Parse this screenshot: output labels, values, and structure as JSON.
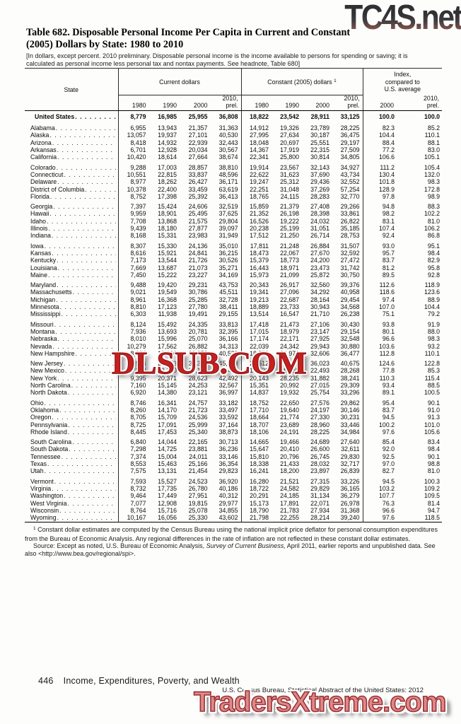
{
  "watermarks": {
    "top": "TC4S.net",
    "middle": "DLSUB.COM",
    "bottom": "TradersXtreme.com"
  },
  "colors": {
    "watermark_red": "#c5201f",
    "watermark_salmon": "#dd8a85",
    "watermark_charcoal": "#313133",
    "text": "#111111"
  },
  "title": {
    "line1": "Table 682. Disposable Personal Income Per Capita in Current and Constant",
    "line2": "(2005) Dollars by State: 1980 to 2010"
  },
  "headnote": "[In dollars, except percent. 2010 preliminary. Disposable personal income is the income available to persons for spending or saving; it is calculated as personal income less personal tax and nontax payments. See headnote, Table 680]",
  "table": {
    "col_state": "State",
    "group_current": "Current dollars",
    "group_constant": "Constant (2005) dollars",
    "footnote_marker": "1",
    "group_index": "Index, compared to U.S. average",
    "year_headers": [
      "1980",
      "1990",
      "2000",
      "2010, prel."
    ],
    "index_year_headers": [
      "2000",
      "2010, prel."
    ],
    "us_row": {
      "label": "United States",
      "values": [
        "8,779",
        "16,985",
        "25,955",
        "36,808",
        "18,822",
        "23,542",
        "28,911",
        "33,125",
        "100.0",
        "100.0"
      ]
    },
    "groups": [
      [
        {
          "label": "Alabama",
          "values": [
            "6,955",
            "13,943",
            "21,357",
            "31,363",
            "14,912",
            "19,326",
            "23,789",
            "28,225",
            "82.3",
            "85.2"
          ]
        },
        {
          "label": "Alaska",
          "values": [
            "13,057",
            "19,937",
            "27,101",
            "40,530",
            "27,995",
            "27,634",
            "30,187",
            "36,475",
            "104.4",
            "110.1"
          ]
        },
        {
          "label": "Arizona",
          "values": [
            "8,418",
            "14,932",
            "22,939",
            "32,443",
            "18,048",
            "20,697",
            "25,551",
            "29,197",
            "88.4",
            "88.1"
          ]
        },
        {
          "label": "Arkansas",
          "values": [
            "6,701",
            "12,928",
            "20,034",
            "30,567",
            "14,367",
            "17,919",
            "22,315",
            "27,509",
            "77.2",
            "83.0"
          ]
        },
        {
          "label": "California",
          "values": [
            "10,420",
            "18,614",
            "27,664",
            "38,674",
            "22,341",
            "25,800",
            "30,814",
            "34,805",
            "106.6",
            "105.1"
          ]
        }
      ],
      [
        {
          "label": "Colorado",
          "values": [
            "9,288",
            "17,003",
            "28,857",
            "38,810",
            "19,914",
            "23,567",
            "32,143",
            "34,927",
            "111.2",
            "105.4"
          ]
        },
        {
          "label": "Connecticut",
          "values": [
            "10,551",
            "22,815",
            "33,837",
            "48,596",
            "22,622",
            "31,623",
            "37,690",
            "43,734",
            "130.4",
            "132.0"
          ]
        },
        {
          "label": "Delaware",
          "values": [
            "8,977",
            "18,262",
            "26,427",
            "36,171",
            "19,247",
            "25,312",
            "29,436",
            "32,552",
            "101.8",
            "98.3"
          ]
        },
        {
          "label": "District of Columbia",
          "values": [
            "10,378",
            "22,400",
            "33,459",
            "63,619",
            "22,251",
            "31,048",
            "37,269",
            "57,254",
            "128.9",
            "172.8"
          ]
        },
        {
          "label": "Florida",
          "values": [
            "8,752",
            "17,398",
            "25,392",
            "36,413",
            "18,765",
            "24,115",
            "28,283",
            "32,770",
            "97.8",
            "98.9"
          ]
        }
      ],
      [
        {
          "label": "Georgia",
          "values": [
            "7,397",
            "15,424",
            "24,606",
            "32,519",
            "15,859",
            "21,379",
            "27,408",
            "29,266",
            "94.8",
            "88.3"
          ]
        },
        {
          "label": "Hawaii",
          "values": [
            "9,959",
            "18,901",
            "25,495",
            "37,625",
            "21,352",
            "26,198",
            "28,398",
            "33,861",
            "98.2",
            "102.2"
          ]
        },
        {
          "label": "Idaho",
          "values": [
            "7,708",
            "13,868",
            "21,575",
            "29,804",
            "16,526",
            "19,222",
            "24,032",
            "26,822",
            "83.1",
            "81.0"
          ]
        },
        {
          "label": "Illinois",
          "values": [
            "9,439",
            "18,180",
            "27,877",
            "39,097",
            "20,238",
            "25,199",
            "31,051",
            "35,185",
            "107.4",
            "106.2"
          ]
        },
        {
          "label": "Indiana",
          "values": [
            "8,168",
            "15,331",
            "23,983",
            "31,949",
            "17,512",
            "21,250",
            "26,714",
            "28,753",
            "92.4",
            "86.8"
          ]
        }
      ],
      [
        {
          "label": "Iowa",
          "values": [
            "8,307",
            "15,330",
            "24,136",
            "35,010",
            "17,811",
            "21,248",
            "26,884",
            "31,507",
            "93.0",
            "95.1"
          ]
        },
        {
          "label": "Kansas",
          "values": [
            "8,616",
            "15,921",
            "24,841",
            "36,215",
            "18,473",
            "22,067",
            "27,670",
            "32,592",
            "95.7",
            "98.4"
          ]
        },
        {
          "label": "Kentucky",
          "values": [
            "7,173",
            "13,544",
            "21,726",
            "30,526",
            "15,379",
            "18,773",
            "24,200",
            "27,472",
            "83.7",
            "82.9"
          ]
        },
        {
          "label": "Louisiana",
          "values": [
            "7,669",
            "13,687",
            "21,073",
            "35,271",
            "16,443",
            "18,971",
            "23,473",
            "31,742",
            "81.2",
            "95.8"
          ]
        },
        {
          "label": "Maine",
          "values": [
            "7,450",
            "15,222",
            "23,227",
            "34,169",
            "15,973",
            "21,099",
            "25,872",
            "30,750",
            "89.5",
            "92.8"
          ]
        }
      ],
      [
        {
          "label": "Maryland",
          "values": [
            "9,488",
            "19,420",
            "29,231",
            "43,753",
            "20,343",
            "26,917",
            "32,560",
            "39,376",
            "112.6",
            "118.9"
          ]
        },
        {
          "label": "Massachusetts",
          "values": [
            "9,021",
            "19,549",
            "30,786",
            "45,511",
            "19,341",
            "27,096",
            "34,292",
            "40,958",
            "118.6",
            "123.6"
          ]
        },
        {
          "label": "Michigan",
          "values": [
            "8,961",
            "16,368",
            "25,285",
            "32,728",
            "19,213",
            "22,687",
            "28,164",
            "29,454",
            "97.4",
            "88.9"
          ]
        },
        {
          "label": "Minnesota",
          "values": [
            "8,810",
            "17,123",
            "27,780",
            "38,411",
            "18,889",
            "23,733",
            "30,943",
            "34,568",
            "107.0",
            "104.4"
          ]
        },
        {
          "label": "Mississippi",
          "values": [
            "6,303",
            "11,938",
            "19,491",
            "29,155",
            "13,514",
            "16,547",
            "21,710",
            "26,238",
            "75.1",
            "79.2"
          ]
        }
      ],
      [
        {
          "label": "Missouri",
          "values": [
            "8,124",
            "15,492",
            "24,335",
            "33,813",
            "17,418",
            "21,473",
            "27,106",
            "30,430",
            "93.8",
            "91.9"
          ]
        },
        {
          "label": "Montana",
          "values": [
            "7,936",
            "13,693",
            "20,781",
            "32,395",
            "17,015",
            "18,979",
            "23,147",
            "29,154",
            "80.1",
            "88.0"
          ]
        },
        {
          "label": "Nebraska",
          "values": [
            "8,010",
            "15,996",
            "25,070",
            "36,166",
            "17,174",
            "22,171",
            "27,925",
            "32,548",
            "96.6",
            "98.3"
          ]
        },
        {
          "label": "Nevada",
          "values": [
            "10,279",
            "17,562",
            "26,882",
            "34,313",
            "22,039",
            "24,342",
            "29,943",
            "30,880",
            "103.6",
            "93.2"
          ]
        },
        {
          "label": "New Hampshire",
          "values": [
            "8,664",
            "18,016",
            "29,373",
            "40,533",
            "18,576",
            "24,971",
            "32,606",
            "36,477",
            "112.8",
            "110.1"
          ]
        }
      ],
      [
        {
          "label": "New Jersey",
          "values": [
            "10,966",
            "21,573",
            "32,340",
            "45,198",
            "23,512",
            "29,901",
            "36,023",
            "40,675",
            "124.6",
            "122.8"
          ]
        },
        {
          "label": "New Mexico",
          "values": [
            "7,243",
            "13,140",
            "20,193",
            "31,411",
            "15,529",
            "18,213",
            "22,493",
            "28,268",
            "77.8",
            "85.3"
          ]
        },
        {
          "label": "New York",
          "values": [
            "9,395",
            "20,371",
            "28,623",
            "42,492",
            "20,143",
            "28,235",
            "31,882",
            "38,241",
            "110.3",
            "115.4"
          ]
        },
        {
          "label": "North Carolina",
          "values": [
            "7,160",
            "15,145",
            "24,253",
            "32,567",
            "15,351",
            "20,992",
            "27,015",
            "29,309",
            "93.4",
            "88.5"
          ]
        },
        {
          "label": "North Dakota",
          "values": [
            "6,920",
            "14,380",
            "23,121",
            "36,997",
            "14,837",
            "19,932",
            "25,754",
            "33,296",
            "89.1",
            "100.5"
          ]
        }
      ],
      [
        {
          "label": "Ohio",
          "values": [
            "8,746",
            "16,341",
            "24,757",
            "33,182",
            "18,752",
            "22,650",
            "27,576",
            "29,862",
            "95.4",
            "90.1"
          ]
        },
        {
          "label": "Oklahoma",
          "values": [
            "8,260",
            "14,170",
            "21,723",
            "33,497",
            "17,710",
            "19,640",
            "24,197",
            "30,146",
            "83.7",
            "91.0"
          ]
        },
        {
          "label": "Oregon",
          "values": [
            "8,705",
            "15,709",
            "24,536",
            "33,592",
            "18,664",
            "21,774",
            "27,330",
            "30,231",
            "94.5",
            "91.3"
          ]
        },
        {
          "label": "Pennsylvania",
          "values": [
            "8,725",
            "17,091",
            "25,999",
            "37,164",
            "18,707",
            "23,689",
            "28,960",
            "33,446",
            "100.2",
            "101.0"
          ]
        },
        {
          "label": "Rhode Island",
          "values": [
            "8,445",
            "17,453",
            "25,340",
            "38,873",
            "18,106",
            "24,191",
            "28,225",
            "34,984",
            "97.6",
            "105.6"
          ]
        }
      ],
      [
        {
          "label": "South Carolina",
          "values": [
            "6,840",
            "14,044",
            "22,165",
            "30,713",
            "14,665",
            "19,466",
            "24,689",
            "27,640",
            "85.4",
            "83.4"
          ]
        },
        {
          "label": "South Dakota",
          "values": [
            "7,298",
            "14,725",
            "23,881",
            "36,236",
            "15,647",
            "20,410",
            "26,600",
            "32,611",
            "92.0",
            "98.4"
          ]
        },
        {
          "label": "Tennessee",
          "values": [
            "7,374",
            "15,004",
            "24,011",
            "33,146",
            "15,810",
            "20,796",
            "26,745",
            "29,830",
            "92.5",
            "90.1"
          ]
        },
        {
          "label": "Texas",
          "values": [
            "8,553",
            "15,463",
            "25,166",
            "36,354",
            "18,338",
            "21,433",
            "28,032",
            "32,717",
            "97.0",
            "98.8"
          ]
        },
        {
          "label": "Utah",
          "values": [
            "7,575",
            "13,131",
            "21,454",
            "29,823",
            "16,241",
            "18,200",
            "23,897",
            "26,839",
            "82.7",
            "81.0"
          ]
        }
      ],
      [
        {
          "label": "Vermont",
          "values": [
            "7,593",
            "15,527",
            "24,523",
            "36,920",
            "16,280",
            "21,521",
            "27,315",
            "33,226",
            "94.5",
            "100.3"
          ]
        },
        {
          "label": "Virginia",
          "values": [
            "8,732",
            "17,735",
            "26,780",
            "40,186",
            "18,722",
            "24,582",
            "29,829",
            "36,165",
            "103.2",
            "109.2"
          ]
        },
        {
          "label": "Washington",
          "values": [
            "9,464",
            "17,449",
            "27,951",
            "40,312",
            "20,291",
            "24,185",
            "31,134",
            "36,279",
            "107.7",
            "109.5"
          ]
        },
        {
          "label": "West Virginia",
          "values": [
            "7,077",
            "12,908",
            "19,815",
            "29,977",
            "15,173",
            "17,891",
            "22,071",
            "26,978",
            "76.3",
            "81.4"
          ]
        },
        {
          "label": "Wisconsin",
          "values": [
            "8,764",
            "15,716",
            "25,078",
            "34,855",
            "18,790",
            "21,783",
            "27,934",
            "31,368",
            "96.6",
            "94.7"
          ]
        },
        {
          "label": "Wyoming",
          "values": [
            "10,167",
            "16,056",
            "25,330",
            "43,602",
            "21,798",
            "22,255",
            "28,214",
            "39,240",
            "97.6",
            "118.5"
          ]
        }
      ]
    ]
  },
  "footnotes": {
    "marker": "1",
    "constant_note": " Constant dollar estimates are computed by the Census Bureau using the national implicit price deflator for personal consumption expenditures from the Bureau of Economic Analysis. Any regional differences in the rate of inflation are not reflected in these constant dollar estimates.",
    "source_prefix": "Source: Except as noted, U.S. Bureau of Economic Analysis, ",
    "source_italic": "Survey of Current Business,",
    "source_suffix": " April 2011, earlier reports and unpublished data. See also <http://www.bea.gov/regional/spi>."
  },
  "footer": {
    "page_number": "446",
    "section_title": "Income, Expenditures, Poverty, and Wealth",
    "attribution": "U.S. Census Bureau, Statistical Abstract of the United States: 2012"
  }
}
